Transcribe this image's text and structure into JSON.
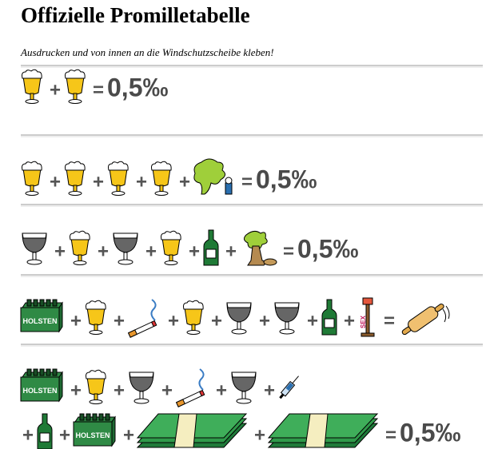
{
  "header": {
    "title": "Offizielle Promilletabelle",
    "subtitle": "Ausdrucken und von innen an die Windschutzscheibe kleben!"
  },
  "symbols": {
    "plus": "+",
    "equals": "="
  },
  "icon_labels": {
    "crate": "HOLSTEN",
    "lamp": "SEX"
  },
  "results": [
    "0,5‰",
    "0,5‰",
    "0,5‰",
    "0,5‰"
  ]
}
